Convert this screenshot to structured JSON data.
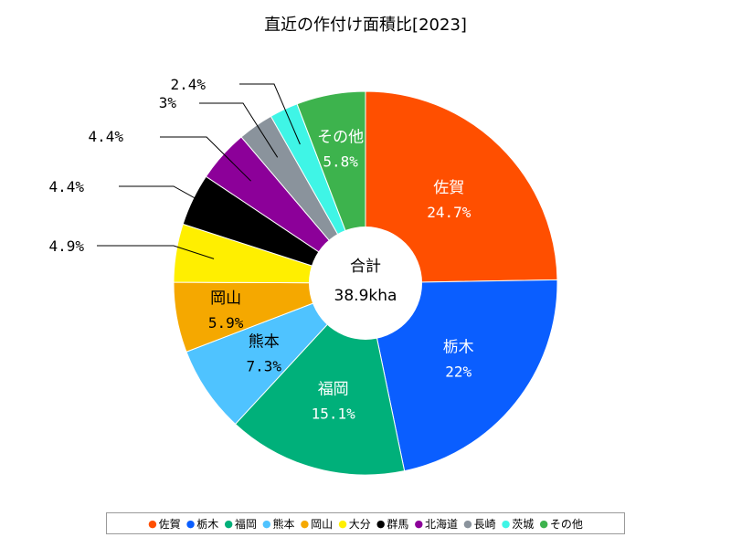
{
  "chart_data": {
    "type": "donut",
    "title": "直近の作付け面積比[2023]",
    "center_label": "合計",
    "center_value": "38.9kha",
    "slices": [
      {
        "name": "佐賀",
        "value": 24.7,
        "label": "24.7%",
        "color": "#ff4f00"
      },
      {
        "name": "栃木",
        "value": 22.0,
        "label": "22%",
        "color": "#0a5eff"
      },
      {
        "name": "福岡",
        "value": 15.1,
        "label": "15.1%",
        "color": "#00b07a"
      },
      {
        "name": "熊本",
        "value": 7.3,
        "label": "7.3%",
        "color": "#4fc3ff"
      },
      {
        "name": "岡山",
        "value": 5.9,
        "label": "5.9%",
        "color": "#f5a800"
      },
      {
        "name": "大分",
        "value": 4.9,
        "label": "4.9%",
        "color": "#ffef00"
      },
      {
        "name": "群馬",
        "value": 4.4,
        "label": "4.4%",
        "color": "#000000"
      },
      {
        "name": "北海道",
        "value": 4.4,
        "label": "4.4%",
        "color": "#8c0099"
      },
      {
        "name": "長崎",
        "value": 3.0,
        "label": "3%",
        "color": "#8a939c"
      },
      {
        "name": "茨城",
        "value": 2.4,
        "label": "2.4%",
        "color": "#3ff5e6"
      },
      {
        "name": "その他",
        "value": 5.8,
        "label": "5.8%",
        "color": "#3db34d"
      }
    ]
  }
}
